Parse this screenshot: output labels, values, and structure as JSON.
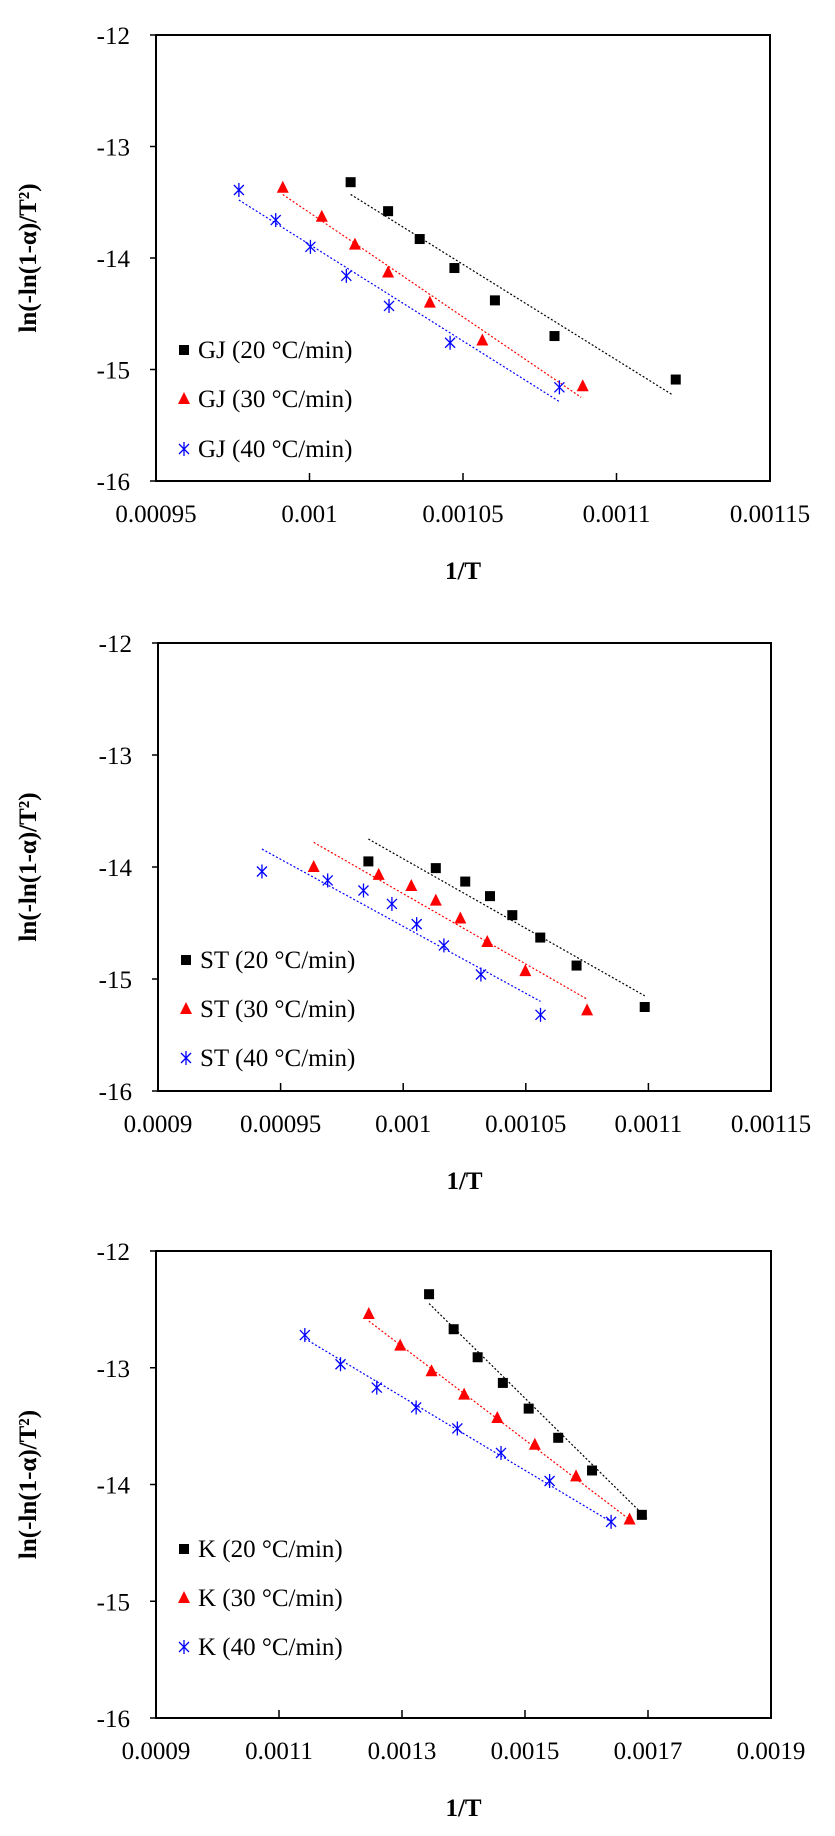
{
  "chart_data": [
    {
      "type": "scatter",
      "title": "",
      "xlabel": "1/T",
      "ylabel": "ln(-ln(1-α)/T²)",
      "xlim": [
        0.00095,
        0.00115
      ],
      "ylim": [
        -16,
        -12
      ],
      "xticks": [
        0.00095,
        0.001,
        0.00105,
        0.0011,
        0.00115
      ],
      "xtick_labels": [
        "0.00095",
        "0.001",
        "0.00105",
        "0.0011",
        "0.00115"
      ],
      "yticks": [
        -16,
        -15,
        -14,
        -13,
        -12
      ],
      "ytick_labels": [
        "-16",
        "-15",
        "-14",
        "-13",
        "-12"
      ],
      "grid": false,
      "legend_position": "bottom-left",
      "series": [
        {
          "name": "GJ (20 °C/min)",
          "color": "#000000",
          "marker": "square",
          "x": [
            0.0010134,
            0.0010256,
            0.0010359,
            0.0010472,
            0.0010604,
            0.0010798,
            0.0011193
          ],
          "y": [
            -13.32,
            -13.58,
            -13.83,
            -14.09,
            -14.38,
            -14.7,
            -15.09
          ],
          "trendline": {
            "x": [
              0.0010134,
              0.0011184
            ],
            "y": [
              -13.43,
              -15.23
            ]
          }
        },
        {
          "name": "GJ (30 °C/min)",
          "color": "#ff0000",
          "marker": "triangle",
          "x": [
            0.0009913,
            0.001004,
            0.0010148,
            0.0010256,
            0.0010392,
            0.0010563,
            0.001089
          ],
          "y": [
            -13.37,
            -13.63,
            -13.88,
            -14.13,
            -14.4,
            -14.74,
            -15.15
          ],
          "trendline": {
            "x": [
              0.0009913,
              0.0010885
            ],
            "y": [
              -13.43,
              -15.25
            ]
          }
        },
        {
          "name": "GJ (40 °C/min)",
          "color": "#0000ff",
          "marker": "asterisk",
          "x": [
            0.000977,
            0.000989,
            0.0010003,
            0.001012,
            0.0010259,
            0.0010458,
            0.0010814
          ],
          "y": [
            -13.39,
            -13.66,
            -13.9,
            -14.16,
            -14.43,
            -14.76,
            -15.16
          ],
          "trendline": {
            "x": [
              0.000977,
              0.0010815
            ],
            "y": [
              -13.48,
              -15.29
            ]
          }
        }
      ]
    },
    {
      "type": "scatter",
      "title": "",
      "xlabel": "1/T",
      "ylabel": "ln(-ln(1-α)/T²)",
      "xlim": [
        0.0009,
        0.00115
      ],
      "ylim": [
        -16,
        -12
      ],
      "xticks": [
        0.0009,
        0.00095,
        0.001,
        0.00105,
        0.0011,
        0.00115
      ],
      "xtick_labels": [
        "0.0009",
        "0.00095",
        "0.001",
        "0.00105",
        "0.0011",
        "0.00115"
      ],
      "yticks": [
        -16,
        -15,
        -14,
        -13,
        -12
      ],
      "ytick_labels": [
        "-16",
        "-15",
        "-14",
        "-13",
        "-12"
      ],
      "grid": false,
      "legend_position": "bottom-left",
      "series": [
        {
          "name": "ST (20 °C/min)",
          "color": "#000000",
          "marker": "square",
          "x": [
            0.0009858,
            0.0010133,
            0.0010253,
            0.0010354,
            0.0010445,
            0.0010559,
            0.0010707,
            0.0010985
          ],
          "y": [
            -13.95,
            -14.01,
            -14.13,
            -14.26,
            -14.43,
            -14.63,
            -14.88,
            -15.25
          ],
          "trendline": {
            "x": [
              0.0009858,
              0.0010985
            ],
            "y": [
              -13.75,
              -15.15
            ]
          }
        },
        {
          "name": "ST (30 °C/min)",
          "color": "#ff0000",
          "marker": "triangle",
          "x": [
            0.0009635,
            0.00099,
            0.0010033,
            0.0010133,
            0.0010233,
            0.0010343,
            0.0010498,
            0.001075
          ],
          "y": [
            -14.0,
            -14.07,
            -14.17,
            -14.3,
            -14.46,
            -14.67,
            -14.93,
            -15.28
          ],
          "trendline": {
            "x": [
              0.0009635,
              0.001075
            ],
            "y": [
              -13.78,
              -15.18
            ]
          }
        },
        {
          "name": "ST (40 °C/min)",
          "color": "#0000ff",
          "marker": "asterisk",
          "x": [
            0.0009424,
            0.0009692,
            0.0009838,
            0.0009954,
            0.0010055,
            0.0010166,
            0.0010317,
            0.001056
          ],
          "y": [
            -14.04,
            -14.12,
            -14.21,
            -14.33,
            -14.51,
            -14.7,
            -14.96,
            -15.32
          ],
          "trendline": {
            "x": [
              0.0009424,
              0.001056
            ],
            "y": [
              -13.84,
              -15.2
            ]
          }
        }
      ]
    },
    {
      "type": "scatter",
      "title": "",
      "xlabel": "1/T",
      "ylabel": "ln(-ln(1-α)/T²)",
      "xlim": [
        0.0009,
        0.0019
      ],
      "ylim": [
        -16,
        -12
      ],
      "xticks": [
        0.0009,
        0.0011,
        0.0013,
        0.0015,
        0.0017,
        0.0019
      ],
      "xtick_labels": [
        "0.0009",
        "0.0011",
        "0.0013",
        "0.0015",
        "0.0017",
        "0.0019"
      ],
      "yticks": [
        -16,
        -15,
        -14,
        -13,
        -12
      ],
      "ytick_labels": [
        "-16",
        "-15",
        "-14",
        "-13",
        "-12"
      ],
      "grid": false,
      "legend_position": "bottom-left",
      "series": [
        {
          "name": "K (20 °C/min)",
          "color": "#000000",
          "marker": "square",
          "x": [
            0.001344,
            0.001384,
            0.001423,
            0.001464,
            0.001506,
            0.001554,
            0.001609,
            0.00169
          ],
          "y": [
            -12.37,
            -12.67,
            -12.91,
            -13.13,
            -13.35,
            -13.6,
            -13.88,
            -14.26
          ],
          "trendline": {
            "x": [
              0.001344,
              0.0017
            ],
            "y": [
              -12.45,
              -14.3
            ]
          }
        },
        {
          "name": "K (30 °C/min)",
          "color": "#ff0000",
          "marker": "triangle",
          "x": [
            0.001246,
            0.001297,
            0.001348,
            0.001401,
            0.001455,
            0.001516,
            0.001583,
            0.00167
          ],
          "y": [
            -12.54,
            -12.81,
            -13.03,
            -13.23,
            -13.43,
            -13.66,
            -13.93,
            -14.3
          ],
          "trendline": {
            "x": [
              0.001246,
              0.00167
            ],
            "y": [
              -12.6,
              -14.3
            ]
          }
        },
        {
          "name": "K (40 °C/min)",
          "color": "#0000ff",
          "marker": "asterisk",
          "x": [
            0.001142,
            0.0012,
            0.001259,
            0.001323,
            0.00139,
            0.001461,
            0.00154,
            0.00164
          ],
          "y": [
            -12.72,
            -12.97,
            -13.17,
            -13.34,
            -13.52,
            -13.73,
            -13.97,
            -14.32
          ],
          "trendline": {
            "x": [
              0.001142,
              0.00164
            ],
            "y": [
              -12.75,
              -14.32
            ]
          }
        }
      ]
    }
  ]
}
